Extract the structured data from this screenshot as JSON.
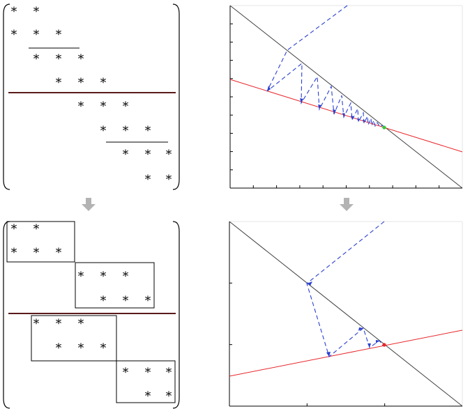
{
  "matrix_top": {
    "stars": [
      {
        "row": 1,
        "col": 1
      },
      {
        "row": 1,
        "col": 2
      },
      {
        "row": 2,
        "col": 1
      },
      {
        "row": 2,
        "col": 2
      },
      {
        "row": 2,
        "col": 3
      },
      {
        "row": 3,
        "col": 2
      },
      {
        "row": 3,
        "col": 3
      },
      {
        "row": 3,
        "col": 4
      },
      {
        "row": 4,
        "col": 3
      },
      {
        "row": 4,
        "col": 4
      },
      {
        "row": 4,
        "col": 5
      },
      {
        "row": 5,
        "col": 4
      },
      {
        "row": 5,
        "col": 5
      },
      {
        "row": 5,
        "col": 6
      },
      {
        "row": 6,
        "col": 5
      },
      {
        "row": 6,
        "col": 6
      },
      {
        "row": 6,
        "col": 7
      },
      {
        "row": 7,
        "col": 6
      },
      {
        "row": 7,
        "col": 7
      },
      {
        "row": 7,
        "col": 8
      },
      {
        "row": 8,
        "col": 7
      },
      {
        "row": 8,
        "col": 8
      }
    ],
    "star_symbol": "*"
  },
  "matrix_bottom": {
    "blocks": [
      {
        "rows": [
          "* *",
          "* * *"
        ]
      },
      {
        "rows": [
          "* * *",
          "* * *"
        ]
      },
      {
        "rows": [
          "* * *",
          "* * *"
        ]
      },
      {
        "rows": [
          "* * *",
          "* *"
        ]
      }
    ],
    "star_symbol": "*"
  },
  "arrows": {
    "color": "#b3b3b3"
  },
  "colors": {
    "red_line": "#e8262a",
    "black_line": "#404040",
    "iteration_dash": "#2a3fd0",
    "separator": "#5a1a1a",
    "limit_point_top": "#33cc33",
    "limit_point_bottom": "#e8262a"
  }
}
